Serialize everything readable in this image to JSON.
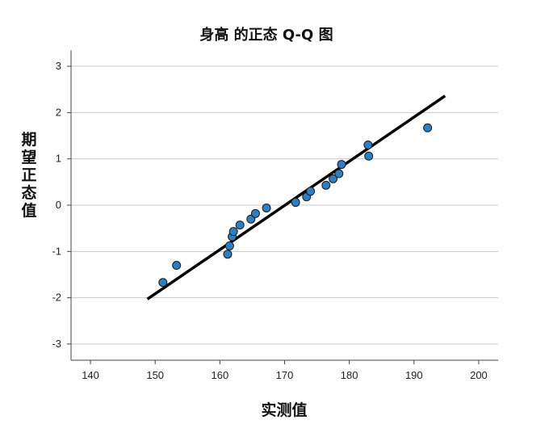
{
  "chart_data": {
    "type": "scatter",
    "title": "身高 的正态 Q-Q 图",
    "xlabel": "实测值",
    "ylabel": "期望正态值",
    "xlim": [
      137,
      203
    ],
    "ylim": [
      -3.35,
      3.35
    ],
    "xticks": [
      140,
      150,
      160,
      170,
      180,
      190,
      200
    ],
    "yticks": [
      3,
      2,
      1,
      0,
      -1,
      -2,
      -3
    ],
    "grid": "horizontal",
    "points": [
      {
        "x": 151.2,
        "y": -1.67
      },
      {
        "x": 153.3,
        "y": -1.3
      },
      {
        "x": 161.2,
        "y": -1.06
      },
      {
        "x": 161.5,
        "y": -0.88
      },
      {
        "x": 161.9,
        "y": -0.68
      },
      {
        "x": 162.1,
        "y": -0.57
      },
      {
        "x": 163.1,
        "y": -0.43
      },
      {
        "x": 164.8,
        "y": -0.3
      },
      {
        "x": 165.5,
        "y": -0.18
      },
      {
        "x": 167.2,
        "y": -0.06
      },
      {
        "x": 171.7,
        "y": 0.06
      },
      {
        "x": 173.4,
        "y": 0.18
      },
      {
        "x": 174.0,
        "y": 0.3
      },
      {
        "x": 176.4,
        "y": 0.43
      },
      {
        "x": 177.5,
        "y": 0.57
      },
      {
        "x": 178.4,
        "y": 0.68
      },
      {
        "x": 178.8,
        "y": 0.88
      },
      {
        "x": 183.0,
        "y": 1.06
      },
      {
        "x": 182.9,
        "y": 1.3
      },
      {
        "x": 192.1,
        "y": 1.67
      }
    ],
    "reference_line": {
      "x": [
        148.8,
        194.8
      ],
      "y": [
        -2.03,
        2.36
      ]
    },
    "colors": {
      "point_fill": "#2f7ec1",
      "point_stroke": "#1a1a1a",
      "line": "#000000",
      "grid": "#c8c8c8",
      "axis": "#444444"
    }
  }
}
